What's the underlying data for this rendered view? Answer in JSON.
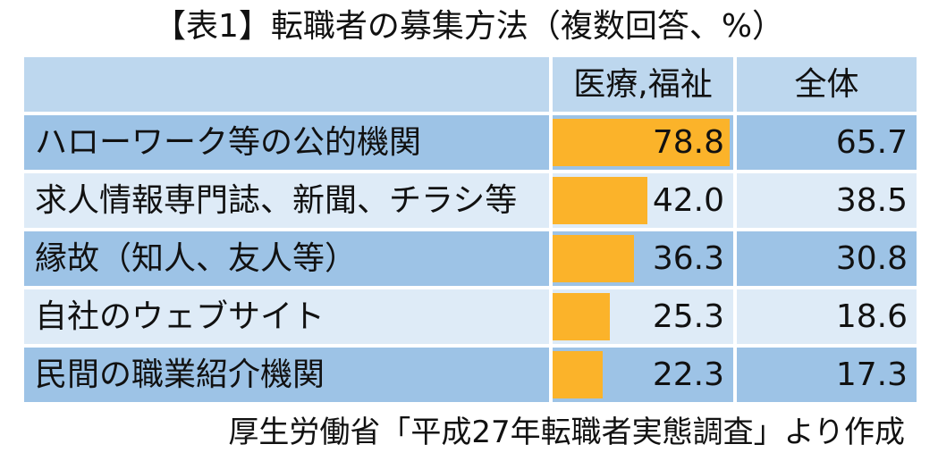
{
  "title": "【表1】転職者の募集方法（複数回答、%）",
  "source": "厚生労働省「平成27年転職者実態調査」より作成",
  "colors": {
    "header_bg": "#bdd7ee",
    "row_dark": "#9dc3e6",
    "row_light": "#deebf7",
    "bar": "#fbb32a"
  },
  "chart_data": {
    "type": "table",
    "title": "【表1】転職者の募集方法（複数回答、%）",
    "columns": [
      "",
      "医療,福祉",
      "全体"
    ],
    "categories": [
      "ハローワーク等の公的機関",
      "求人情報専門誌、新聞、チラシ等",
      "縁故（知人、友人等）",
      "自社のウェブサイト",
      "民間の職業紹介機関"
    ],
    "series": [
      {
        "name": "医療,福祉",
        "values": [
          "78.8",
          "42.0",
          "36.3",
          "25.3",
          "22.3"
        ]
      },
      {
        "name": "全体",
        "values": [
          "65.7",
          "38.5",
          "30.8",
          "18.6",
          "17.3"
        ]
      }
    ],
    "bar_series": "医療,福祉",
    "bar_max": 78.8
  }
}
